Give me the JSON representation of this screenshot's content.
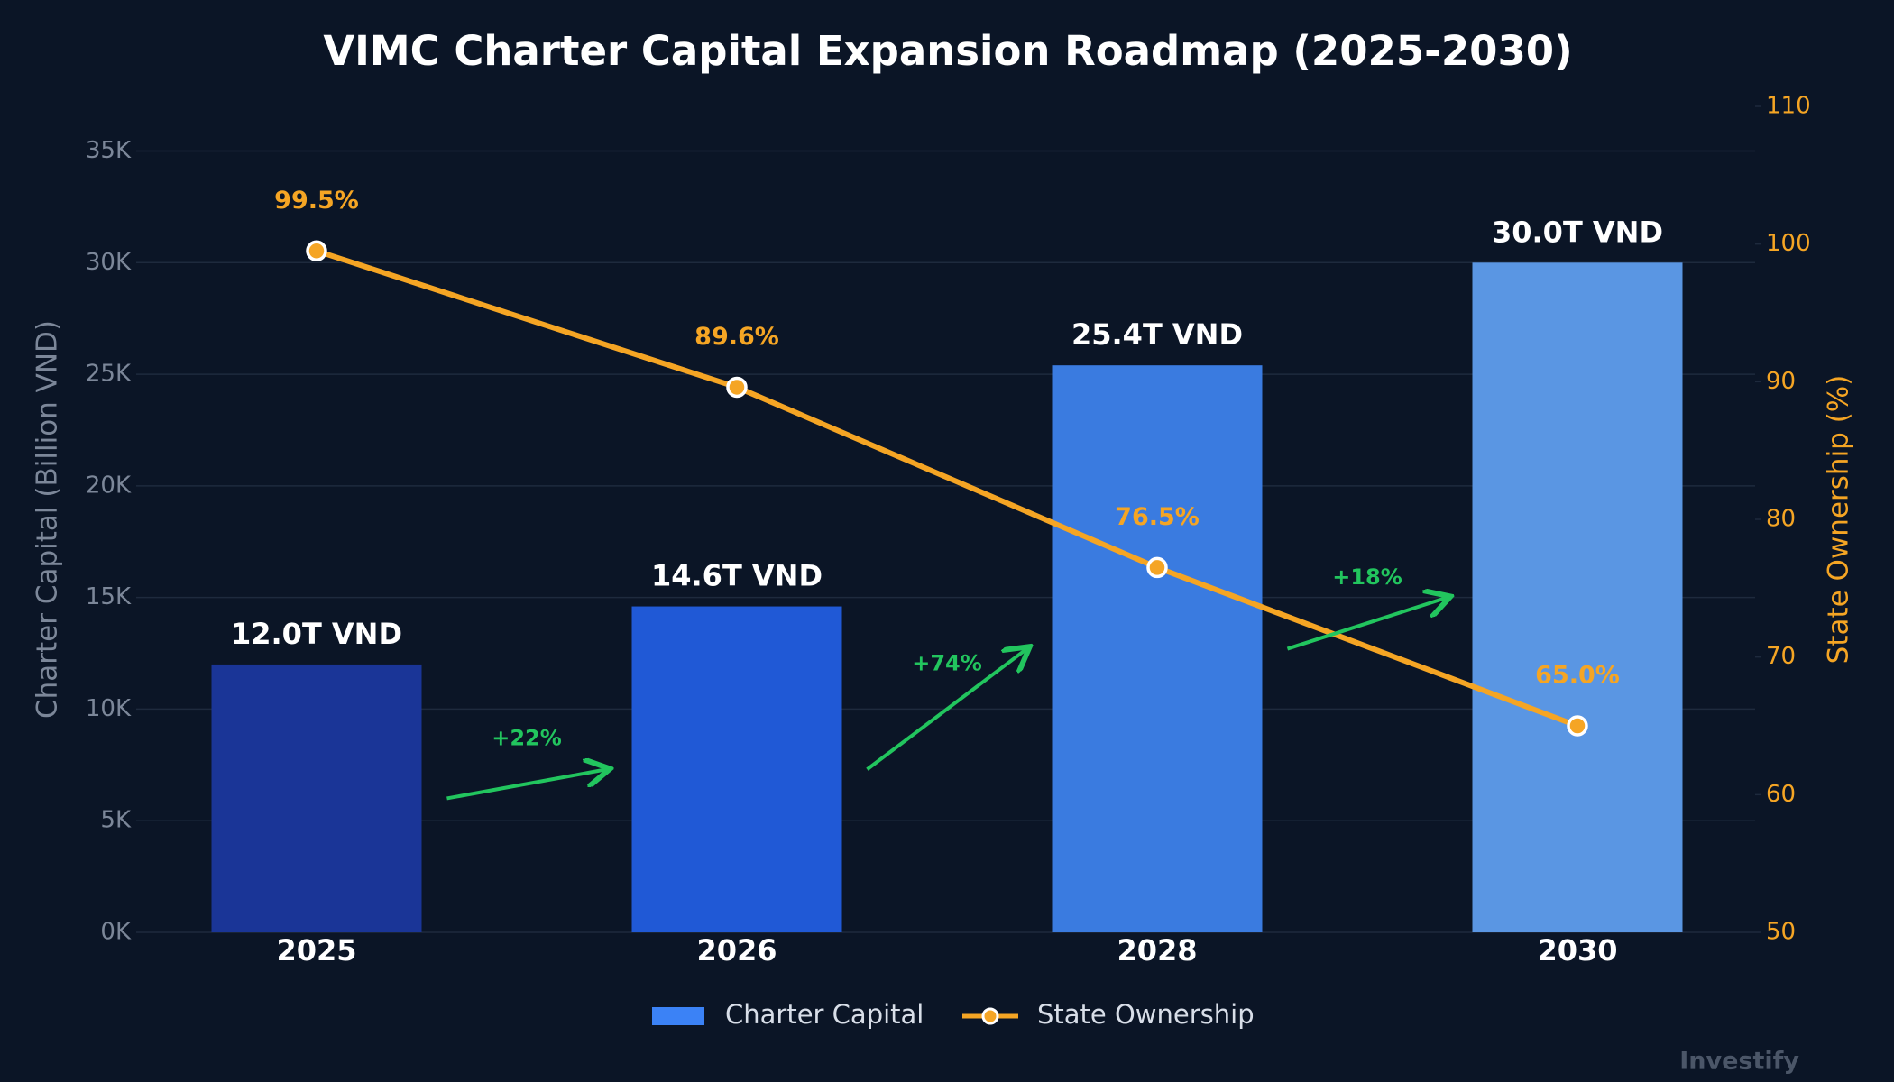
{
  "chart_data": {
    "type": "bar",
    "title": "VIMC Charter Capital Expansion Roadmap (2025-2030)",
    "y_label": "Charter Capital (Billion VND)",
    "y2_label": "State Ownership (%)",
    "categories": [
      "2025",
      "2026",
      "2028",
      "2030"
    ],
    "series": [
      {
        "name": "Charter Capital",
        "type": "bar",
        "color": "#3b82f6",
        "colors": [
          "#1a3597",
          "#2059d6",
          "#3a7be0",
          "#5a96e3"
        ],
        "values": [
          12000,
          14600,
          25400,
          30000
        ],
        "value_labels": [
          "12.0T VND",
          "14.6T VND",
          "25.4T VND",
          "30.0T VND"
        ]
      },
      {
        "name": "State Ownership",
        "type": "line",
        "axis": "y2",
        "color": "#f5a524",
        "values": [
          99.5,
          89.6,
          76.5,
          65.0
        ],
        "value_labels": [
          "99.5%",
          "89.6%",
          "76.5%",
          "65.0%"
        ]
      }
    ],
    "annotations": [
      "+22%",
      "+74%",
      "+18%"
    ],
    "annotation_color": "#22c55e",
    "ylim": [
      0,
      37000
    ],
    "yticks": [
      {
        "value": 0,
        "label": "0K"
      },
      {
        "value": 5000,
        "label": "5K"
      },
      {
        "value": 10000,
        "label": "10K"
      },
      {
        "value": 15000,
        "label": "15K"
      },
      {
        "value": 20000,
        "label": "20K"
      },
      {
        "value": 25000,
        "label": "25K"
      },
      {
        "value": 30000,
        "label": "30K"
      },
      {
        "value": 35000,
        "label": "35K"
      }
    ],
    "y2lim": [
      50,
      110
    ],
    "y2ticks": [
      50,
      60,
      70,
      80,
      90,
      100,
      110
    ],
    "grid": true,
    "legend": "bottom",
    "watermark": "Investify"
  }
}
